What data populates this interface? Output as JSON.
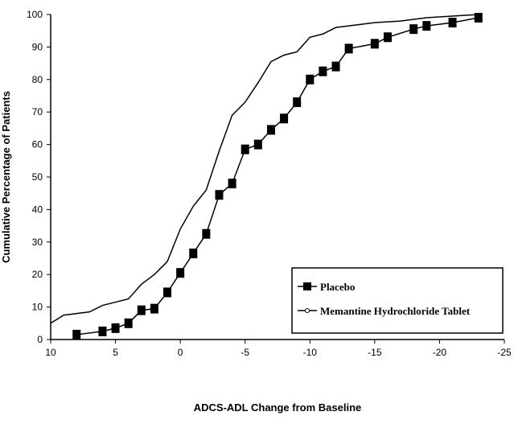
{
  "chart_data": {
    "type": "line",
    "title": "",
    "xlabel": "ADCS-ADL Change from Baseline",
    "ylabel": "Cumulative Percentage of Patients",
    "xlim": [
      10,
      -25
    ],
    "ylim": [
      0,
      100
    ],
    "x_ticks": [
      10,
      5,
      0,
      -5,
      -10,
      -15,
      -20,
      -25
    ],
    "x_tick_labels": [
      "10",
      "5",
      "0",
      "-5",
      "-10",
      "-15",
      "-20",
      "-25"
    ],
    "y_ticks": [
      0,
      10,
      20,
      30,
      40,
      50,
      60,
      70,
      80,
      90,
      100
    ],
    "y_tick_labels": [
      "0",
      "10",
      "20",
      "30",
      "40",
      "50",
      "60",
      "70",
      "80",
      "90",
      "100"
    ],
    "grid": false,
    "legend_position": "bottom-right",
    "series": [
      {
        "name": "Placebo",
        "marker": "square",
        "x": [
          8,
          6,
          5,
          4,
          3,
          2,
          1,
          0,
          -1,
          -2,
          -3,
          -4,
          -5,
          -6,
          -7,
          -8,
          -9,
          -10,
          -11,
          -12,
          -13,
          -15,
          -16,
          -18,
          -19,
          -21,
          -23
        ],
        "y": [
          1.5,
          2.5,
          3.5,
          5,
          9,
          9.5,
          14.5,
          20.5,
          26.5,
          32.5,
          44.5,
          48,
          58.5,
          60,
          64.5,
          68,
          73,
          80,
          82.5,
          84,
          89.5,
          91,
          93,
          95.5,
          96.5,
          97.5,
          99
        ]
      },
      {
        "name": "Memantine Hydrochloride Tablet",
        "marker": "none",
        "x": [
          10,
          9,
          7,
          6,
          5,
          4,
          3,
          2,
          1,
          0,
          -1,
          -2,
          -3,
          -4,
          -5,
          -6,
          -7,
          -8,
          -9,
          -10,
          -11,
          -12,
          -13,
          -15,
          -17,
          -19,
          -21,
          -23
        ],
        "y": [
          5,
          7.5,
          8.5,
          10.5,
          11.5,
          12.5,
          17,
          20,
          24,
          34,
          41,
          46,
          58,
          69,
          73,
          79,
          85.5,
          87.5,
          88.5,
          93,
          94,
          96,
          96.5,
          97.5,
          98,
          99,
          99.5,
          100
        ]
      }
    ]
  }
}
